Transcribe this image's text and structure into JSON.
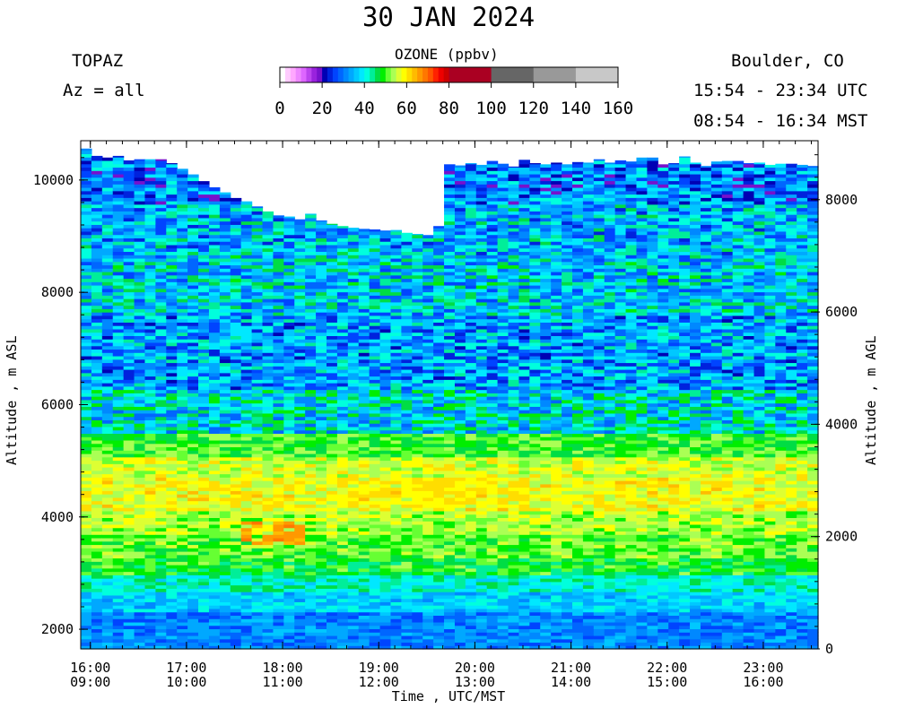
{
  "chart_data": {
    "type": "heatmap",
    "title": "30 JAN 2024",
    "instrument": "TOPAZ",
    "azimuth": "Az = all",
    "location": "Boulder, CO",
    "time_utc": "15:54 - 23:34 UTC",
    "time_mst": "08:54 - 16:34 MST",
    "colorbar": {
      "title": "OZONE (ppbv)",
      "ticks": [
        "0",
        "20",
        "40",
        "60",
        "80",
        "100",
        "120",
        "140",
        "160"
      ],
      "range": [
        0,
        160
      ],
      "bins": [
        {
          "from": 0,
          "to": 2.5,
          "color": "#ffffff"
        },
        {
          "from": 2.5,
          "to": 5,
          "color": "#ffccff"
        },
        {
          "from": 5,
          "to": 7.5,
          "color": "#ffa8ff"
        },
        {
          "from": 7.5,
          "to": 10,
          "color": "#ee88ff"
        },
        {
          "from": 10,
          "to": 12.5,
          "color": "#dd66ff"
        },
        {
          "from": 12.5,
          "to": 15,
          "color": "#bb44ee"
        },
        {
          "from": 15,
          "to": 17.5,
          "color": "#9922dd"
        },
        {
          "from": 17.5,
          "to": 20,
          "color": "#7711cc"
        },
        {
          "from": 20,
          "to": 22.5,
          "color": "#0000b4"
        },
        {
          "from": 22.5,
          "to": 25,
          "color": "#0022dd"
        },
        {
          "from": 25,
          "to": 27.5,
          "color": "#0044ff"
        },
        {
          "from": 27.5,
          "to": 30,
          "color": "#0066ff"
        },
        {
          "from": 30,
          "to": 32.5,
          "color": "#0088ff"
        },
        {
          "from": 32.5,
          "to": 35,
          "color": "#00a8ff"
        },
        {
          "from": 35,
          "to": 37.5,
          "color": "#00c8ff"
        },
        {
          "from": 37.5,
          "to": 40,
          "color": "#00e8ff"
        },
        {
          "from": 40,
          "to": 42.5,
          "color": "#00ffdd"
        },
        {
          "from": 42.5,
          "to": 45,
          "color": "#00ee99"
        },
        {
          "from": 45,
          "to": 47.5,
          "color": "#00dd44"
        },
        {
          "from": 47.5,
          "to": 50,
          "color": "#00ee00"
        },
        {
          "from": 50,
          "to": 52.5,
          "color": "#66ff33"
        },
        {
          "from": 52.5,
          "to": 55,
          "color": "#aaff55"
        },
        {
          "from": 55,
          "to": 57.5,
          "color": "#ddff33"
        },
        {
          "from": 57.5,
          "to": 60,
          "color": "#ffff00"
        },
        {
          "from": 60,
          "to": 62.5,
          "color": "#ffdd00"
        },
        {
          "from": 62.5,
          "to": 65,
          "color": "#ffbb00"
        },
        {
          "from": 65,
          "to": 67.5,
          "color": "#ff9900"
        },
        {
          "from": 67.5,
          "to": 70,
          "color": "#ff7700"
        },
        {
          "from": 70,
          "to": 72.5,
          "color": "#ff5500"
        },
        {
          "from": 72.5,
          "to": 75,
          "color": "#ff2200"
        },
        {
          "from": 75,
          "to": 77.5,
          "color": "#ee0000"
        },
        {
          "from": 77.5,
          "to": 80,
          "color": "#cc0000"
        },
        {
          "from": 80,
          "to": 100,
          "color": "#aa0022"
        },
        {
          "from": 100,
          "to": 120,
          "color": "#666666"
        },
        {
          "from": 120,
          "to": 140,
          "color": "#999999"
        },
        {
          "from": 140,
          "to": 160,
          "color": "#c8c8c8"
        }
      ]
    },
    "xlabel": "Time , UTC/MST",
    "ylabel_left": "Altitude , m ASL",
    "ylabel_right": "Altitude , m AGL",
    "x_ticks_utc": [
      "16:00",
      "17:00",
      "18:00",
      "19:00",
      "20:00",
      "21:00",
      "22:00",
      "23:00"
    ],
    "x_ticks_mst": [
      "09:00",
      "10:00",
      "11:00",
      "12:00",
      "13:00",
      "14:00",
      "15:00",
      "16:00"
    ],
    "x_range_utc_hours": [
      15.9,
      23.57
    ],
    "y_left_ticks": [
      2000,
      4000,
      6000,
      8000,
      10000
    ],
    "y_right_ticks": [
      0,
      2000,
      4000,
      6000,
      8000
    ],
    "ylim_asl": [
      1650,
      10700
    ],
    "surface_elevation_asl_m": 1650,
    "column_top_asl_m": [
      10560,
      10430,
      10400,
      10430,
      10350,
      10370,
      10370,
      10370,
      10300,
      10200,
      10100,
      9980,
      9870,
      9780,
      9680,
      9620,
      9530,
      9440,
      9370,
      9350,
      9300,
      9400,
      9280,
      9220,
      9180,
      9150,
      9130,
      9120,
      9100,
      9110,
      9060,
      9040,
      9020,
      9180,
      10280,
      10260,
      10300,
      10270,
      10340,
      10290,
      10240,
      10360,
      10300,
      10280,
      10310,
      10280,
      10320,
      10310,
      10370,
      10310,
      10350,
      10330,
      10400,
      10400,
      10280,
      10300,
      10420,
      10310,
      10250,
      10330,
      10340,
      10340,
      10300,
      10310,
      10270,
      10290,
      10290,
      10270,
      10250
    ],
    "profile_layers": [
      {
        "from": 1650,
        "to": 2300,
        "ozone_ppbv": 31
      },
      {
        "from": 2300,
        "to": 2700,
        "ozone_ppbv": 37
      },
      {
        "from": 2700,
        "to": 3000,
        "ozone_ppbv": 42
      },
      {
        "from": 3000,
        "to": 3300,
        "ozone_ppbv": 48
      },
      {
        "from": 3300,
        "to": 3700,
        "ozone_ppbv": 51
      },
      {
        "from": 3700,
        "to": 4100,
        "ozone_ppbv": 54
      },
      {
        "from": 4100,
        "to": 4700,
        "ozone_ppbv": 58
      },
      {
        "from": 4700,
        "to": 5100,
        "ozone_ppbv": 56
      },
      {
        "from": 5100,
        "to": 5500,
        "ozone_ppbv": 50
      },
      {
        "from": 5500,
        "to": 6300,
        "ozone_ppbv": 39
      },
      {
        "from": 6300,
        "to": 7600,
        "ozone_ppbv": 33
      },
      {
        "from": 7600,
        "to": 8700,
        "ozone_ppbv": 37
      },
      {
        "from": 8700,
        "to": 9600,
        "ozone_ppbv": 35
      },
      {
        "from": 9600,
        "to": 10700,
        "ozone_ppbv": 30
      }
    ],
    "features": [
      {
        "type": "enhanced_ozone_layer",
        "time_utc": [
          17.6,
          18.2
        ],
        "altitude_asl": [
          3500,
          3900
        ],
        "ozone_ppbv": 66
      },
      {
        "type": "enhanced_ozone_layer",
        "time_utc": [
          18.6,
          20.6
        ],
        "altitude_asl": [
          4200,
          4700
        ],
        "ozone_ppbv": 60
      }
    ]
  }
}
